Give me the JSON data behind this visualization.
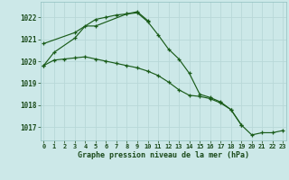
{
  "background_color": "#cce8e8",
  "grid_color": "#b8d8d8",
  "line_color": "#1a5c1a",
  "marker": "+",
  "title": "Graphe pression niveau de la mer (hPa)",
  "ylim": [
    1016.4,
    1022.7
  ],
  "yticks": [
    1017,
    1018,
    1019,
    1020,
    1021,
    1022
  ],
  "xlim": [
    -0.3,
    23.3
  ],
  "xticks": [
    0,
    1,
    2,
    3,
    4,
    5,
    6,
    7,
    8,
    9,
    10,
    11,
    12,
    13,
    14,
    15,
    16,
    17,
    18,
    19,
    20,
    21,
    22,
    23
  ],
  "s1_x": [
    0,
    1,
    3,
    4,
    5,
    8,
    9,
    10
  ],
  "s1_y": [
    1019.8,
    1020.4,
    1021.05,
    1021.6,
    1021.6,
    1022.15,
    1022.25,
    1021.85
  ],
  "s2_x": [
    0,
    3,
    5,
    6,
    7,
    8,
    9,
    10,
    11,
    12,
    13,
    14,
    15,
    16,
    17,
    18,
    19
  ],
  "s2_y": [
    1020.8,
    1021.3,
    1021.9,
    1022.0,
    1022.1,
    1022.15,
    1022.2,
    1021.8,
    1021.2,
    1020.55,
    1020.1,
    1019.45,
    1018.5,
    1018.35,
    1018.15,
    1017.8,
    1017.1
  ],
  "s3_x": [
    0,
    1,
    2,
    3,
    4,
    5,
    6,
    7,
    8,
    9,
    10,
    11,
    12,
    13,
    14,
    15,
    16,
    17,
    18,
    19,
    20,
    21,
    22,
    23
  ],
  "s3_y": [
    1019.8,
    1020.05,
    1020.1,
    1020.15,
    1020.2,
    1020.1,
    1020.0,
    1019.9,
    1019.8,
    1019.7,
    1019.55,
    1019.35,
    1019.05,
    1018.7,
    1018.45,
    1018.4,
    1018.3,
    1018.1,
    1017.8,
    1017.1,
    1016.65,
    1016.75,
    1016.75,
    1016.85
  ]
}
